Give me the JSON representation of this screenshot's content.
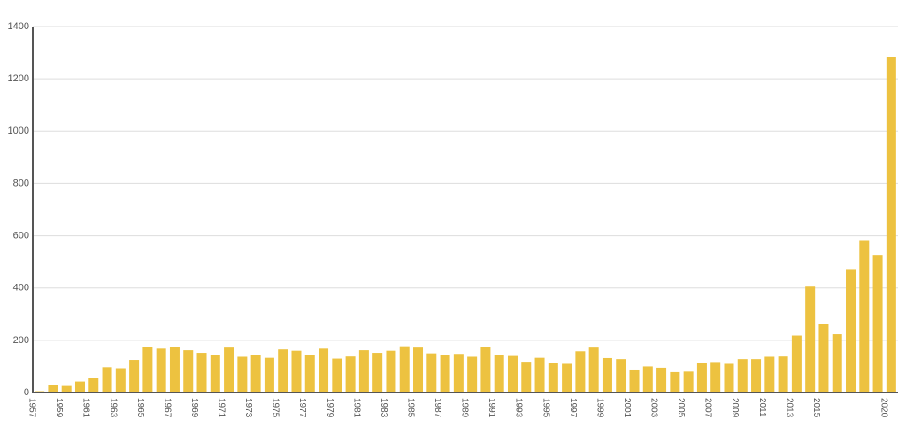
{
  "chart_data": {
    "type": "bar",
    "categories": [
      "1957",
      null,
      "1959",
      null,
      "1961",
      null,
      "1963",
      null,
      "1965",
      null,
      "1967",
      null,
      "1969",
      null,
      "1971",
      null,
      "1973",
      null,
      "1975",
      null,
      "1977",
      null,
      "1979",
      null,
      "1981",
      null,
      "1983",
      null,
      "1985",
      null,
      "1987",
      null,
      "1989",
      null,
      "1991",
      null,
      "1993",
      null,
      "1995",
      null,
      "1997",
      null,
      "1999",
      null,
      "2001",
      null,
      "2003",
      null,
      "2005",
      null,
      "2007",
      null,
      "2009",
      null,
      "2011",
      null,
      "2013",
      null,
      "2015",
      null,
      null,
      null,
      null,
      "2020"
    ],
    "values": [
      5,
      30,
      25,
      42,
      55,
      97,
      93,
      125,
      173,
      168,
      173,
      162,
      152,
      143,
      172,
      137,
      143,
      133,
      165,
      160,
      143,
      168,
      130,
      138,
      162,
      152,
      160,
      177,
      172,
      150,
      142,
      148,
      137,
      173,
      143,
      140,
      118,
      133,
      113,
      110,
      158,
      172,
      132,
      128,
      88,
      100,
      95,
      78,
      80,
      115,
      117,
      110,
      128,
      128,
      137,
      138,
      218,
      405,
      262,
      223,
      472,
      580,
      527,
      1282
    ],
    "color": "#edc240",
    "ylim": [
      0,
      1400
    ],
    "yticks": [
      0,
      200,
      400,
      600,
      800,
      1000,
      1200,
      1400
    ],
    "grid": true
  }
}
